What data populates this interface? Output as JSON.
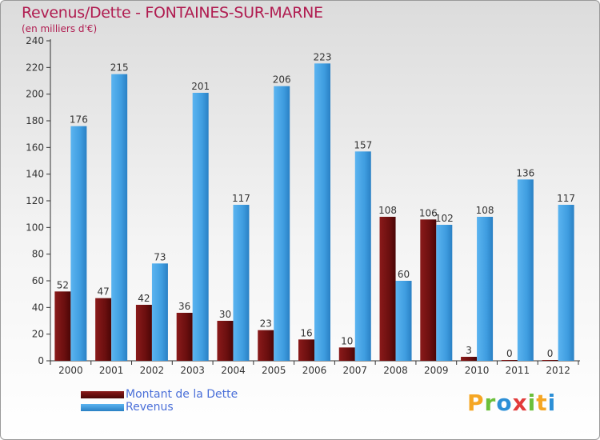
{
  "header": {
    "title": "Revenus/Dette - FONTAINES-SUR-MARNE",
    "subtitle": "(en milliers d'€)"
  },
  "legend": {
    "items": [
      {
        "label": "Montant de la Dette",
        "color": "#6b0f0f"
      },
      {
        "label": "Revenus",
        "color": "#3f9de0"
      }
    ]
  },
  "logo": {
    "letters": [
      "P",
      "r",
      "o",
      "x",
      "i",
      "t",
      "i"
    ],
    "colors": [
      "#f5a623",
      "#6bbf3a",
      "#2c8fd6",
      "#e23b3b",
      "#6bbf3a",
      "#f5a623",
      "#2c8fd6"
    ]
  },
  "colors": {
    "title": "#b01c50",
    "dette": "#6b0f0f",
    "revenus": "#3f9de0",
    "axis": "#333333"
  },
  "chart_data": {
    "type": "bar",
    "categories": [
      "2000",
      "2001",
      "2002",
      "2003",
      "2004",
      "2005",
      "2006",
      "2007",
      "2008",
      "2009",
      "2010",
      "2011",
      "2012"
    ],
    "series": [
      {
        "name": "Montant de la Dette",
        "values": [
          52,
          47,
          42,
          36,
          30,
          23,
          16,
          10,
          108,
          106,
          3,
          0,
          0
        ]
      },
      {
        "name": "Revenus",
        "values": [
          176,
          215,
          73,
          201,
          117,
          206,
          223,
          157,
          60,
          102,
          108,
          136,
          117
        ]
      }
    ],
    "title": "Revenus/Dette - FONTAINES-SUR-MARNE",
    "subtitle": "(en milliers d'€)",
    "ylim": [
      0,
      240
    ],
    "yticks": [
      0,
      20,
      40,
      60,
      80,
      100,
      120,
      140,
      160,
      180,
      200,
      220,
      240
    ],
    "grid": false,
    "legend_position": "bottom-left"
  }
}
